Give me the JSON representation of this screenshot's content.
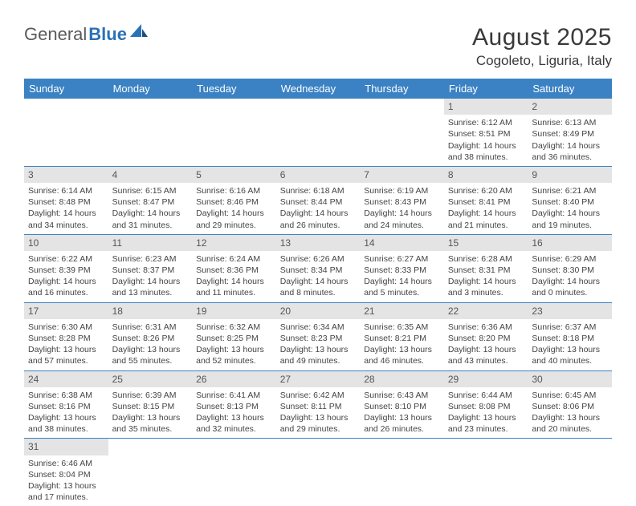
{
  "brand": {
    "part1": "General",
    "part2": "Blue"
  },
  "title": "August 2025",
  "location": "Cogoleto, Liguria, Italy",
  "colors": {
    "header_bg": "#3b82c4",
    "header_fg": "#ffffff",
    "daynum_bg": "#e4e4e4",
    "text": "#444444",
    "brand_gray": "#5a5a5a",
    "brand_blue": "#2a71b8"
  },
  "weekdays": [
    "Sunday",
    "Monday",
    "Tuesday",
    "Wednesday",
    "Thursday",
    "Friday",
    "Saturday"
  ],
  "weeks": [
    [
      null,
      null,
      null,
      null,
      null,
      {
        "n": "1",
        "sr": "Sunrise: 6:12 AM",
        "ss": "Sunset: 8:51 PM",
        "dl": "Daylight: 14 hours and 38 minutes."
      },
      {
        "n": "2",
        "sr": "Sunrise: 6:13 AM",
        "ss": "Sunset: 8:49 PM",
        "dl": "Daylight: 14 hours and 36 minutes."
      }
    ],
    [
      {
        "n": "3",
        "sr": "Sunrise: 6:14 AM",
        "ss": "Sunset: 8:48 PM",
        "dl": "Daylight: 14 hours and 34 minutes."
      },
      {
        "n": "4",
        "sr": "Sunrise: 6:15 AM",
        "ss": "Sunset: 8:47 PM",
        "dl": "Daylight: 14 hours and 31 minutes."
      },
      {
        "n": "5",
        "sr": "Sunrise: 6:16 AM",
        "ss": "Sunset: 8:46 PM",
        "dl": "Daylight: 14 hours and 29 minutes."
      },
      {
        "n": "6",
        "sr": "Sunrise: 6:18 AM",
        "ss": "Sunset: 8:44 PM",
        "dl": "Daylight: 14 hours and 26 minutes."
      },
      {
        "n": "7",
        "sr": "Sunrise: 6:19 AM",
        "ss": "Sunset: 8:43 PM",
        "dl": "Daylight: 14 hours and 24 minutes."
      },
      {
        "n": "8",
        "sr": "Sunrise: 6:20 AM",
        "ss": "Sunset: 8:41 PM",
        "dl": "Daylight: 14 hours and 21 minutes."
      },
      {
        "n": "9",
        "sr": "Sunrise: 6:21 AM",
        "ss": "Sunset: 8:40 PM",
        "dl": "Daylight: 14 hours and 19 minutes."
      }
    ],
    [
      {
        "n": "10",
        "sr": "Sunrise: 6:22 AM",
        "ss": "Sunset: 8:39 PM",
        "dl": "Daylight: 14 hours and 16 minutes."
      },
      {
        "n": "11",
        "sr": "Sunrise: 6:23 AM",
        "ss": "Sunset: 8:37 PM",
        "dl": "Daylight: 14 hours and 13 minutes."
      },
      {
        "n": "12",
        "sr": "Sunrise: 6:24 AM",
        "ss": "Sunset: 8:36 PM",
        "dl": "Daylight: 14 hours and 11 minutes."
      },
      {
        "n": "13",
        "sr": "Sunrise: 6:26 AM",
        "ss": "Sunset: 8:34 PM",
        "dl": "Daylight: 14 hours and 8 minutes."
      },
      {
        "n": "14",
        "sr": "Sunrise: 6:27 AM",
        "ss": "Sunset: 8:33 PM",
        "dl": "Daylight: 14 hours and 5 minutes."
      },
      {
        "n": "15",
        "sr": "Sunrise: 6:28 AM",
        "ss": "Sunset: 8:31 PM",
        "dl": "Daylight: 14 hours and 3 minutes."
      },
      {
        "n": "16",
        "sr": "Sunrise: 6:29 AM",
        "ss": "Sunset: 8:30 PM",
        "dl": "Daylight: 14 hours and 0 minutes."
      }
    ],
    [
      {
        "n": "17",
        "sr": "Sunrise: 6:30 AM",
        "ss": "Sunset: 8:28 PM",
        "dl": "Daylight: 13 hours and 57 minutes."
      },
      {
        "n": "18",
        "sr": "Sunrise: 6:31 AM",
        "ss": "Sunset: 8:26 PM",
        "dl": "Daylight: 13 hours and 55 minutes."
      },
      {
        "n": "19",
        "sr": "Sunrise: 6:32 AM",
        "ss": "Sunset: 8:25 PM",
        "dl": "Daylight: 13 hours and 52 minutes."
      },
      {
        "n": "20",
        "sr": "Sunrise: 6:34 AM",
        "ss": "Sunset: 8:23 PM",
        "dl": "Daylight: 13 hours and 49 minutes."
      },
      {
        "n": "21",
        "sr": "Sunrise: 6:35 AM",
        "ss": "Sunset: 8:21 PM",
        "dl": "Daylight: 13 hours and 46 minutes."
      },
      {
        "n": "22",
        "sr": "Sunrise: 6:36 AM",
        "ss": "Sunset: 8:20 PM",
        "dl": "Daylight: 13 hours and 43 minutes."
      },
      {
        "n": "23",
        "sr": "Sunrise: 6:37 AM",
        "ss": "Sunset: 8:18 PM",
        "dl": "Daylight: 13 hours and 40 minutes."
      }
    ],
    [
      {
        "n": "24",
        "sr": "Sunrise: 6:38 AM",
        "ss": "Sunset: 8:16 PM",
        "dl": "Daylight: 13 hours and 38 minutes."
      },
      {
        "n": "25",
        "sr": "Sunrise: 6:39 AM",
        "ss": "Sunset: 8:15 PM",
        "dl": "Daylight: 13 hours and 35 minutes."
      },
      {
        "n": "26",
        "sr": "Sunrise: 6:41 AM",
        "ss": "Sunset: 8:13 PM",
        "dl": "Daylight: 13 hours and 32 minutes."
      },
      {
        "n": "27",
        "sr": "Sunrise: 6:42 AM",
        "ss": "Sunset: 8:11 PM",
        "dl": "Daylight: 13 hours and 29 minutes."
      },
      {
        "n": "28",
        "sr": "Sunrise: 6:43 AM",
        "ss": "Sunset: 8:10 PM",
        "dl": "Daylight: 13 hours and 26 minutes."
      },
      {
        "n": "29",
        "sr": "Sunrise: 6:44 AM",
        "ss": "Sunset: 8:08 PM",
        "dl": "Daylight: 13 hours and 23 minutes."
      },
      {
        "n": "30",
        "sr": "Sunrise: 6:45 AM",
        "ss": "Sunset: 8:06 PM",
        "dl": "Daylight: 13 hours and 20 minutes."
      }
    ],
    [
      {
        "n": "31",
        "sr": "Sunrise: 6:46 AM",
        "ss": "Sunset: 8:04 PM",
        "dl": "Daylight: 13 hours and 17 minutes."
      },
      null,
      null,
      null,
      null,
      null,
      null
    ]
  ]
}
